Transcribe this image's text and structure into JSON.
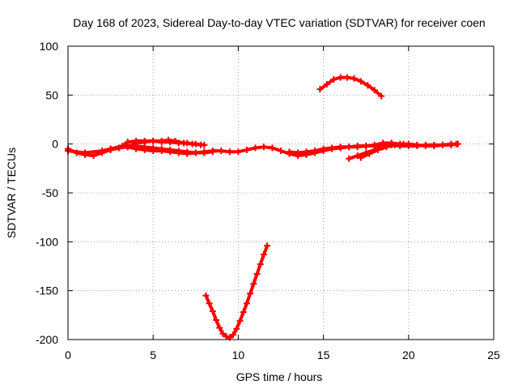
{
  "chart_data": {
    "type": "scatter",
    "title": "Day 168 of 2023, Sidereal Day-to-day VTEC variation (SDTVAR) for receiver coen",
    "xlabel": "GPS time / hours",
    "ylabel": "SDTVAR / TECUs",
    "xlim": [
      0,
      25
    ],
    "ylim": [
      -200,
      100
    ],
    "xticks": [
      "0",
      "5",
      "10",
      "15",
      "20",
      "25"
    ],
    "yticks": [
      "100",
      "50",
      "0",
      "-50",
      "-100",
      "-150",
      "-200"
    ],
    "grid": true,
    "color": "#ff0000",
    "series": [
      {
        "points": [
          [
            0.0,
            -5
          ],
          [
            0.5,
            -9
          ],
          [
            1.0,
            -11
          ],
          [
            1.5,
            -12
          ],
          [
            2.0,
            -9
          ],
          [
            2.5,
            -6
          ],
          [
            3.0,
            -4
          ],
          [
            3.5,
            -3
          ],
          [
            4.0,
            -2
          ],
          [
            4.5,
            -3
          ],
          [
            5.0,
            -4
          ],
          [
            5.5,
            -5
          ],
          [
            6.0,
            -6
          ],
          [
            6.5,
            -7
          ],
          [
            7.0,
            -8
          ],
          [
            7.5,
            -9
          ],
          [
            8.0,
            -8
          ],
          [
            8.5,
            -7
          ],
          [
            9.0,
            -7
          ],
          [
            9.5,
            -8
          ],
          [
            10.0,
            -8
          ],
          [
            10.5,
            -6
          ],
          [
            11.0,
            -4
          ],
          [
            11.5,
            -3
          ],
          [
            12.0,
            -4
          ],
          [
            12.5,
            -7
          ],
          [
            13.0,
            -10
          ],
          [
            13.5,
            -12
          ],
          [
            14.0,
            -11
          ],
          [
            14.5,
            -9
          ],
          [
            15.0,
            -7
          ],
          [
            15.5,
            -5
          ],
          [
            16.0,
            -4
          ],
          [
            16.5,
            -3
          ],
          [
            17.0,
            -3
          ],
          [
            17.5,
            -2
          ],
          [
            18.0,
            -1
          ],
          [
            18.5,
            1
          ],
          [
            19.0,
            1
          ],
          [
            19.5,
            0
          ],
          [
            20.0,
            0
          ],
          [
            20.5,
            -1
          ],
          [
            21.0,
            -2
          ],
          [
            21.5,
            -2
          ],
          [
            22.0,
            -1
          ],
          [
            22.5,
            -1
          ],
          [
            22.8,
            0
          ]
        ]
      },
      {
        "points": [
          [
            0.0,
            -7
          ],
          [
            1.0,
            -9
          ],
          [
            2.0,
            -7
          ],
          [
            2.5,
            -5
          ],
          [
            3.0,
            -4
          ],
          [
            3.5,
            -2
          ],
          [
            3.8,
            -1
          ],
          [
            4.0,
            1
          ],
          [
            4.5,
            2
          ],
          [
            5.0,
            3
          ],
          [
            5.5,
            2
          ],
          [
            6.0,
            2
          ],
          [
            6.5,
            1
          ],
          [
            7.0,
            1
          ],
          [
            7.5,
            0
          ],
          [
            8.0,
            -1
          ]
        ]
      },
      {
        "points": [
          [
            2.5,
            -5
          ],
          [
            3.2,
            -2
          ],
          [
            3.5,
            2
          ],
          [
            4.0,
            3
          ],
          [
            4.5,
            3
          ],
          [
            5.0,
            3
          ],
          [
            5.5,
            3
          ],
          [
            5.9,
            4
          ],
          [
            6.3,
            3
          ],
          [
            6.8,
            1
          ],
          [
            7.3,
            0
          ],
          [
            7.8,
            -1
          ]
        ]
      },
      {
        "points": [
          [
            3.5,
            -3
          ],
          [
            4.0,
            -5
          ],
          [
            4.5,
            -6
          ],
          [
            5.0,
            -7
          ],
          [
            5.5,
            -7
          ],
          [
            6.0,
            -8
          ],
          [
            6.5,
            -9
          ],
          [
            7.0,
            -10
          ],
          [
            7.5,
            -9
          ],
          [
            8.0,
            -9
          ],
          [
            8.5,
            -8
          ]
        ]
      },
      {
        "points": [
          [
            13.0,
            -8
          ],
          [
            13.5,
            -9
          ],
          [
            14.0,
            -8
          ],
          [
            14.5,
            -7
          ],
          [
            15.0,
            -5
          ],
          [
            15.5,
            -4
          ],
          [
            16.0,
            -3
          ],
          [
            16.5,
            -3
          ],
          [
            17.0,
            -2
          ],
          [
            17.5,
            -2
          ],
          [
            18.0,
            -2
          ],
          [
            18.5,
            -1
          ],
          [
            19.0,
            -1
          ],
          [
            19.5,
            -2
          ],
          [
            20.0,
            -2
          ],
          [
            20.5,
            -2
          ],
          [
            21.0,
            -1
          ],
          [
            21.5,
            -1
          ],
          [
            22.0,
            -1
          ],
          [
            22.5,
            0
          ],
          [
            22.9,
            0
          ]
        ]
      },
      {
        "points": [
          [
            16.5,
            -15
          ],
          [
            17.0,
            -12
          ],
          [
            17.5,
            -9
          ],
          [
            18.0,
            -6
          ],
          [
            18.5,
            -3
          ]
        ]
      },
      {
        "points": [
          [
            17.2,
            -14
          ],
          [
            17.7,
            -10
          ],
          [
            18.2,
            -6
          ],
          [
            18.7,
            -3
          ],
          [
            19.2,
            -1
          ],
          [
            19.7,
            0
          ]
        ]
      },
      {
        "points": [
          [
            14.8,
            56
          ],
          [
            15.2,
            61
          ],
          [
            15.6,
            66
          ],
          [
            16.0,
            68
          ],
          [
            16.4,
            68
          ],
          [
            16.8,
            67
          ],
          [
            17.2,
            64
          ],
          [
            17.6,
            60
          ],
          [
            18.0,
            55
          ],
          [
            18.4,
            49
          ]
        ]
      },
      {
        "points": [
          [
            8.1,
            -155
          ],
          [
            8.3,
            -163
          ],
          [
            8.5,
            -171
          ],
          [
            8.7,
            -180
          ],
          [
            8.9,
            -188
          ],
          [
            9.1,
            -194
          ],
          [
            9.3,
            -197
          ],
          [
            9.5,
            -198
          ],
          [
            9.7,
            -195
          ],
          [
            9.9,
            -189
          ],
          [
            10.1,
            -181
          ],
          [
            10.3,
            -172
          ],
          [
            10.5,
            -163
          ],
          [
            10.7,
            -153
          ],
          [
            10.9,
            -143
          ],
          [
            11.1,
            -133
          ],
          [
            11.3,
            -123
          ],
          [
            11.5,
            -113
          ],
          [
            11.7,
            -104
          ]
        ]
      }
    ]
  }
}
